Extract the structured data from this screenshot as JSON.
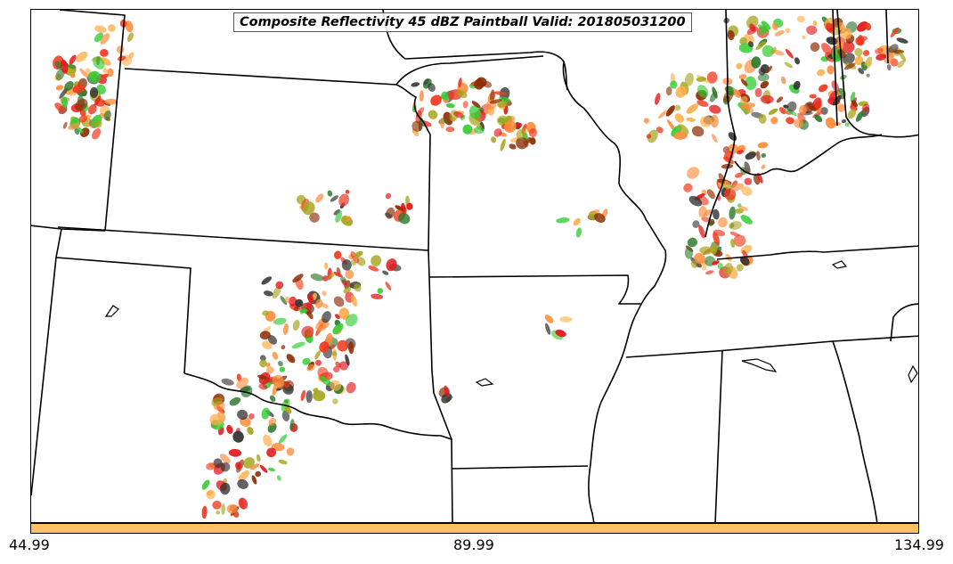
{
  "title": "Composite Reflectivity 45 dBZ Paintball Valid: 201805031200",
  "colorbar": {
    "color": "#fdc062",
    "labels": [
      "44.99",
      "89.99",
      "134.99"
    ]
  },
  "paintball_colors": [
    "#e31a1c",
    "#33cc33",
    "#fd8d3c",
    "#8c2d04",
    "#a6a61e",
    "#2d7a2d",
    "#333333",
    "#fdae4b",
    "#f03b20"
  ]
}
